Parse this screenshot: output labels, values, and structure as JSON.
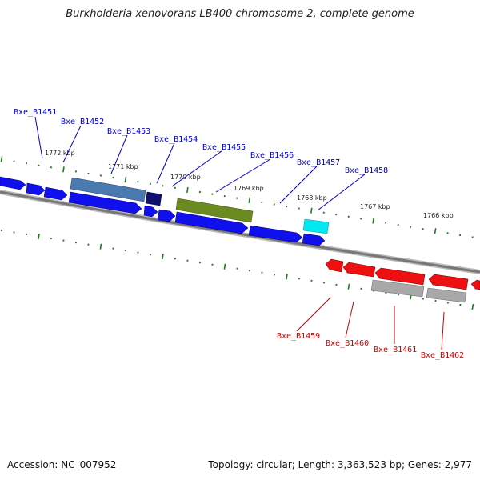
{
  "title": "Burkholderia xenovorans LB400 chromosome 2, complete genome",
  "footer": {
    "accession": "Accession: NC_007952",
    "topology": "Topology: circular; Length: 3,363,523 bp; Genes: 2,977"
  },
  "scale_labels": [
    "1772 kbp",
    "1771 kbp",
    "1770 kbp",
    "1769 kbp",
    "1768 kbp",
    "1767 kbp",
    "1766 kbp"
  ],
  "forward_genes": [
    "Bxe_B1451",
    "Bxe_B1452",
    "Bxe_B1453",
    "Bxe_B1454",
    "Bxe_B1455",
    "Bxe_B1456",
    "Bxe_B1457",
    "Bxe_B1458"
  ],
  "reverse_genes": [
    "Bxe_B1459",
    "Bxe_B1460",
    "Bxe_B1461",
    "Bxe_B1462"
  ],
  "colors": {
    "forward_label": "#0000cc",
    "reverse_label": "#cc0000",
    "forward_cds": "#1010ee",
    "reverse_cds": "#ee1010",
    "steelblue_feature": "#4a7ab0",
    "navy_feature": "#101070",
    "olive_feature": "#6b8a22",
    "cyan_feature": "#00e8f0",
    "gray_feature": "#a8a8a8",
    "backbone": "#777777",
    "ticks": "#1e7a1e"
  }
}
